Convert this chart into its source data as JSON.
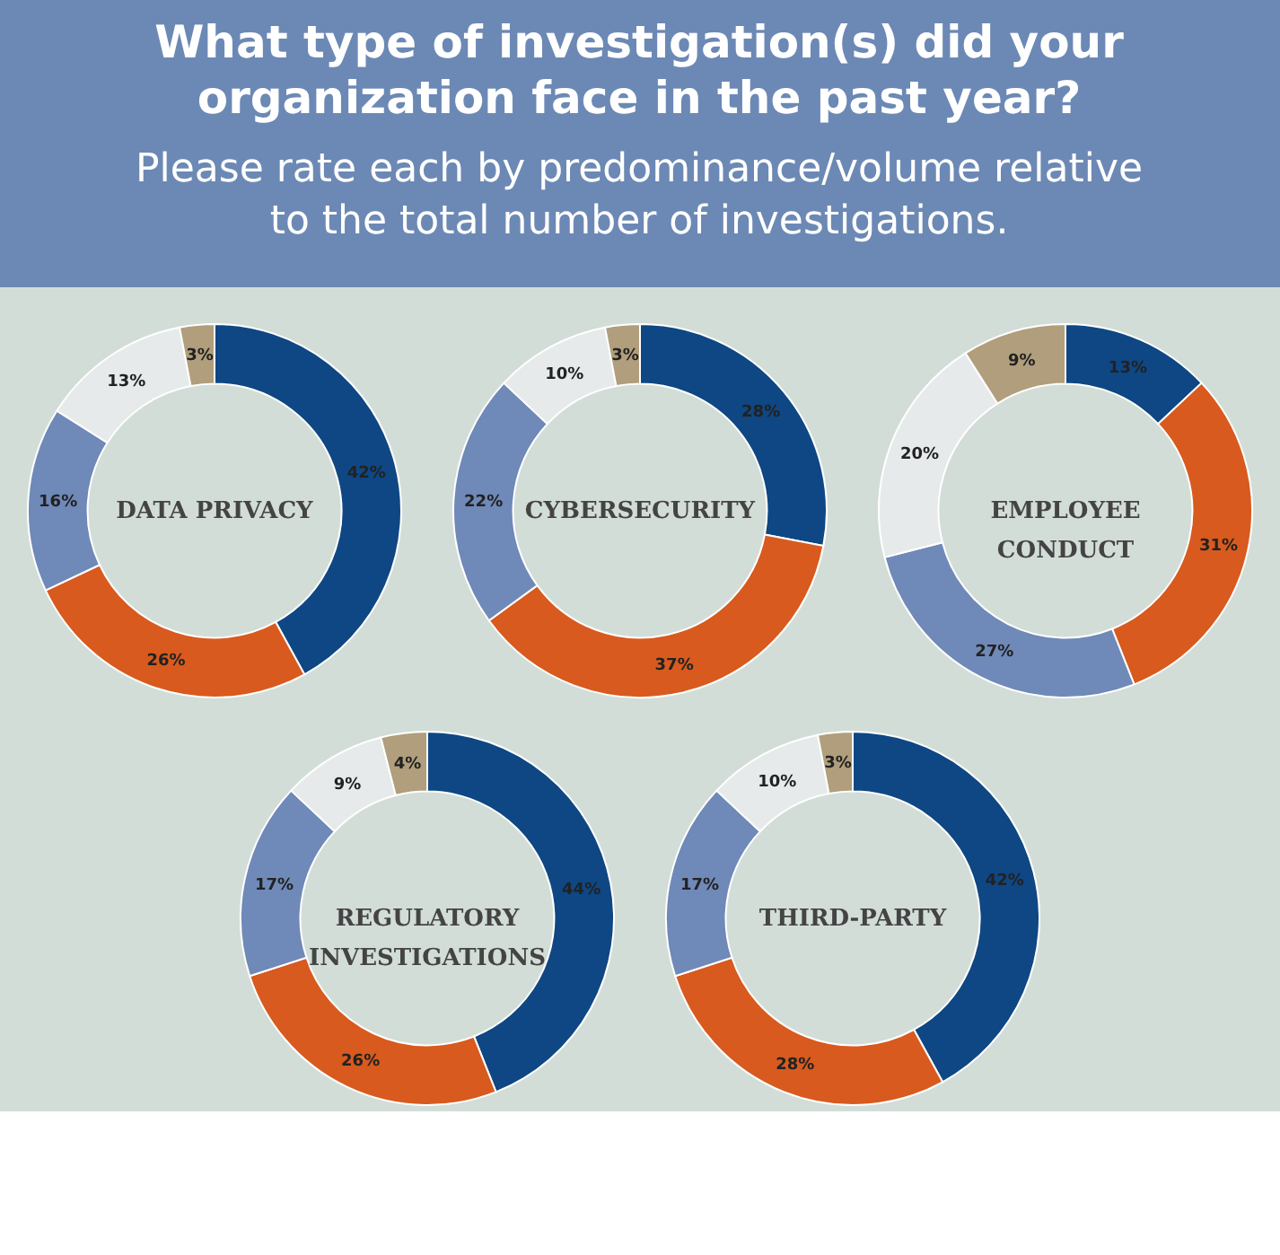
{
  "chart_data": [
    {
      "type": "other",
      "title": "What type of investigation(s) did your organization face in the past year?",
      "subtitle": "Please rate each by predominance/volume relative to the total number of investigations."
    },
    {
      "type": "donut",
      "title": "DATA PRIVACY",
      "categories": [
        null,
        null,
        null,
        null,
        null
      ],
      "values": [
        42,
        26,
        16,
        13,
        3
      ],
      "value_labels": [
        "42%",
        "26%",
        "16%",
        "13%",
        "3%"
      ],
      "colors": [
        "#0e4783",
        "#d85a1e",
        "#6f89b8",
        "#e6eaea",
        "#b09e7c"
      ]
    },
    {
      "type": "donut",
      "title": "CYBERSECURITY",
      "categories": [
        null,
        null,
        null,
        null,
        null
      ],
      "values": [
        28,
        37,
        22,
        10,
        3
      ],
      "value_labels": [
        "28%",
        "37%",
        "22%",
        "10%",
        "3%"
      ],
      "colors": [
        "#0e4783",
        "#d85a1e",
        "#6f89b8",
        "#e6eaea",
        "#b09e7c"
      ]
    },
    {
      "type": "donut",
      "title": "EMPLOYEE CONDUCT",
      "categories": [
        null,
        null,
        null,
        null,
        null
      ],
      "values": [
        13,
        31,
        27,
        20,
        9
      ],
      "value_labels": [
        "13%",
        "31%",
        "27%",
        "20%",
        "9%"
      ],
      "colors": [
        "#0e4783",
        "#d85a1e",
        "#6f89b8",
        "#e6eaea",
        "#b09e7c"
      ]
    },
    {
      "type": "donut",
      "title": "REGULATORY INVESTIGATIONS",
      "categories": [
        null,
        null,
        null,
        null,
        null
      ],
      "values": [
        44,
        26,
        17,
        9,
        4
      ],
      "value_labels": [
        "44%",
        "26%",
        "17%",
        "9%",
        "4%"
      ],
      "colors": [
        "#0e4783",
        "#d85a1e",
        "#6f89b8",
        "#e6eaea",
        "#b09e7c"
      ]
    },
    {
      "type": "donut",
      "title": "THIRD-PARTY",
      "categories": [
        null,
        null,
        null,
        null,
        null
      ],
      "values": [
        42,
        28,
        17,
        10,
        3
      ],
      "value_labels": [
        "42%",
        "28%",
        "17%",
        "10%",
        "3%"
      ],
      "colors": [
        "#0e4783",
        "#d85a1e",
        "#6f89b8",
        "#e6eaea",
        "#b09e7c"
      ]
    }
  ]
}
